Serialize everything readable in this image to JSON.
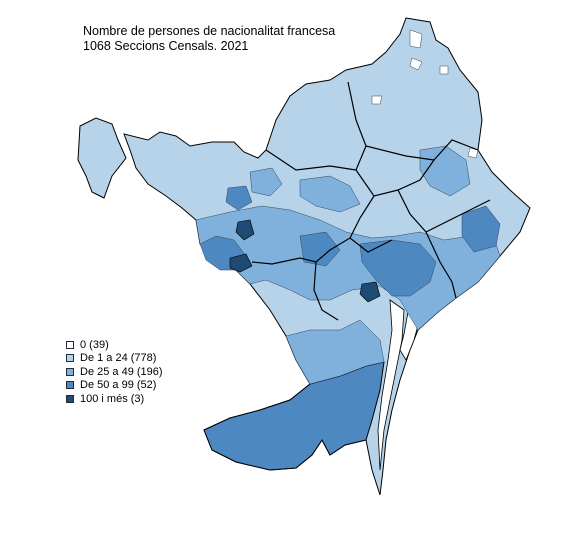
{
  "title": {
    "line1": "Nombre de persones de nacionalitat francesa",
    "line2": "1068 Seccions Censals. 2021"
  },
  "legend": [
    {
      "label": "0 (39)",
      "color": "#ffffff"
    },
    {
      "label": "De 1 a 24 (778)",
      "color": "#b7d3ea"
    },
    {
      "label": "De 25 a 49 (196)",
      "color": "#7fb1dc"
    },
    {
      "label": "De 50 a 99 (52)",
      "color": "#4d88c1"
    },
    {
      "label": "100 i més (3)",
      "color": "#1f4a73"
    }
  ]
}
